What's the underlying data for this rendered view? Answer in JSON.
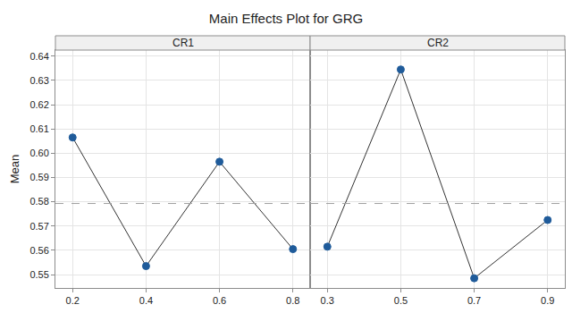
{
  "chart_data": {
    "type": "line",
    "title": "Main Effects Plot for GRG",
    "y_label": "Mean",
    "color": "#1f5b9a",
    "marker": "circle",
    "line_style": "solid",
    "grid": true,
    "ylim": [
      0.5445,
      0.6425
    ],
    "yticks": [
      0.55,
      0.56,
      0.57,
      0.58,
      0.59,
      {
        "value": 0.6,
        "label": "0.60"
      },
      0.61,
      0.62,
      0.63,
      0.64
    ],
    "mean_line": 0.5793,
    "panels": [
      {
        "title": "CR1",
        "categories": [
          "0.2",
          "0.4",
          "0.6",
          "0.8"
        ],
        "values": [
          0.6065,
          0.5535,
          0.5965,
          0.5605
        ]
      },
      {
        "title": "CR2",
        "categories": [
          "0.3",
          "0.5",
          "0.7",
          "0.9"
        ],
        "values": [
          0.5615,
          0.6345,
          0.5485,
          0.5725
        ]
      }
    ]
  }
}
